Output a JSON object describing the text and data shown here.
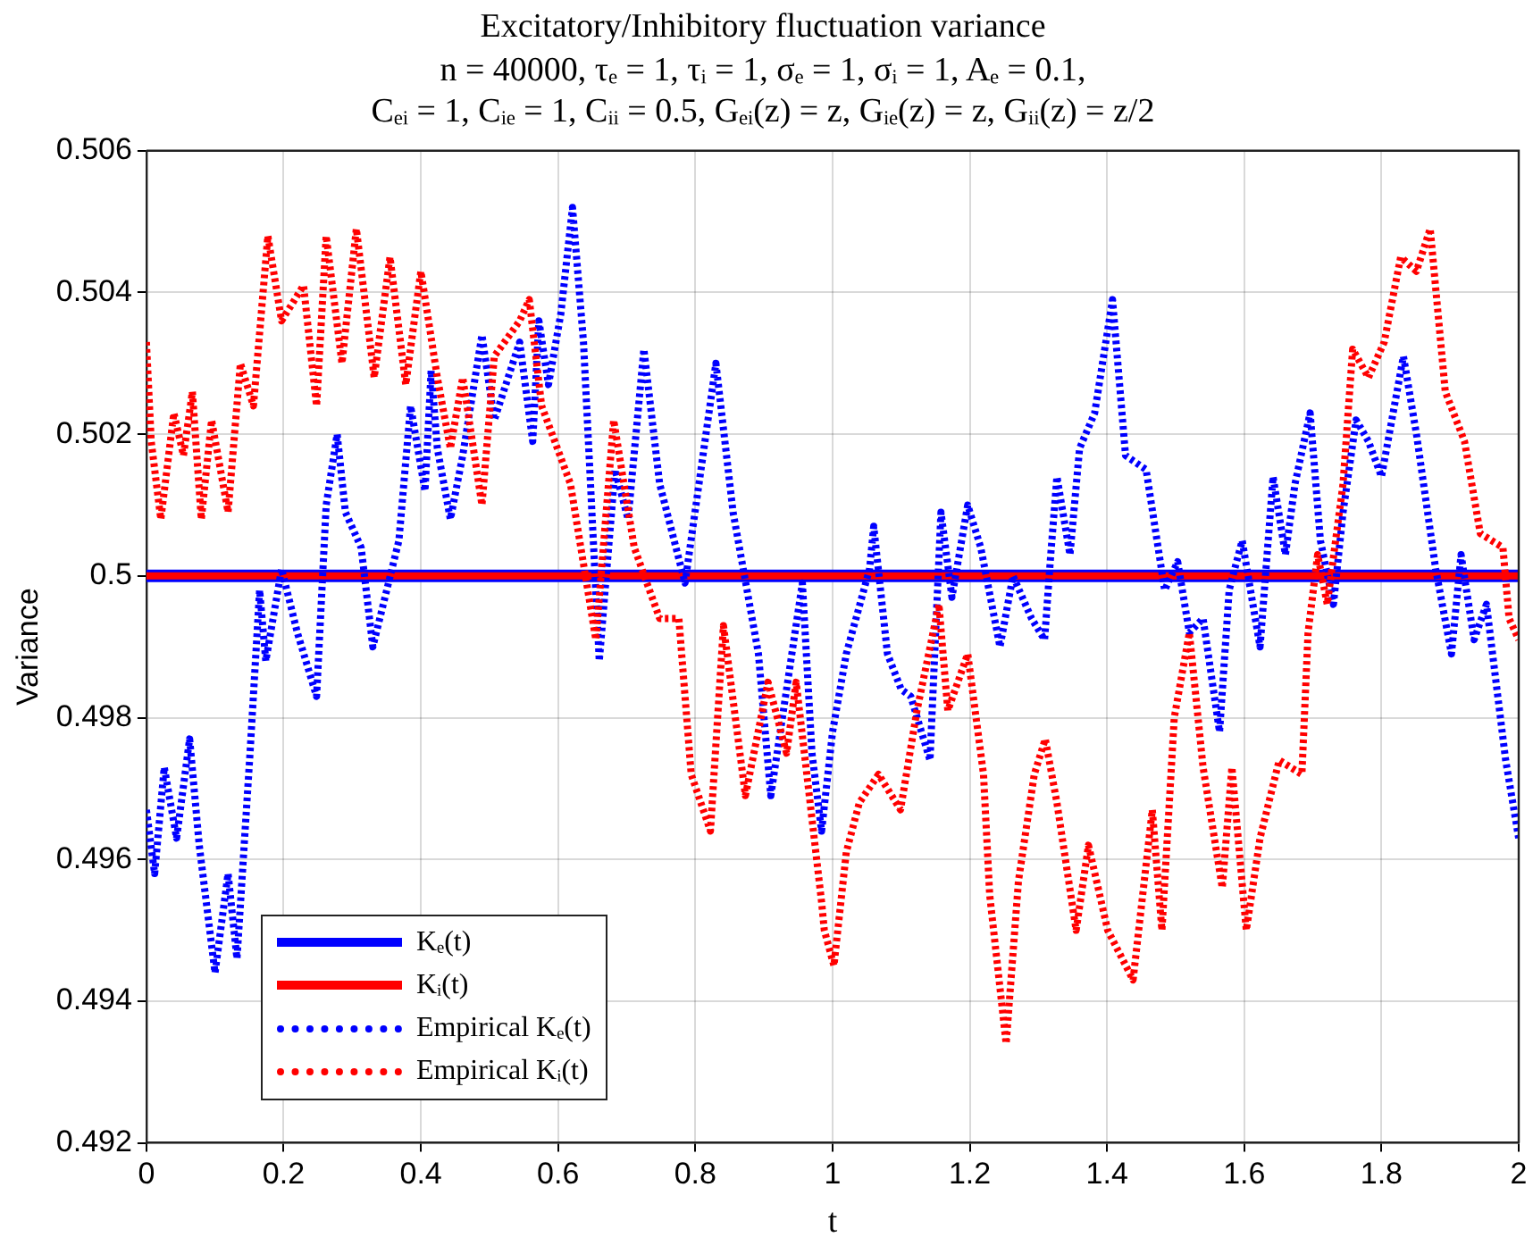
{
  "chart_data": {
    "type": "line",
    "title": "Excitatory/Inhibitory fluctuation variance",
    "subtitle": [
      "n = 40000, τₑ = 1, τᵢ = 1, σₑ = 1, σᵢ = 1, Aₑ = 0.1,",
      "Cₑᵢ = 1, Cᵢₑ = 1, Cᵢᵢ = 0.5, Gₑᵢ(z) = z, Gᵢₑ(z) = z, Gᵢᵢ(z) = z/2"
    ],
    "xlabel": "t",
    "ylabel": "Variance",
    "xlim": [
      0,
      2
    ],
    "xticks": [
      0,
      0.2,
      0.4,
      0.6,
      0.8,
      1,
      1.2,
      1.4,
      1.6,
      1.8,
      2
    ],
    "ylim": [
      0.492,
      0.506
    ],
    "yticks": [
      0.492,
      0.494,
      0.496,
      0.498,
      0.5,
      0.502,
      0.504,
      0.506
    ],
    "grid": true,
    "legend": "bottom left",
    "marker": "none",
    "series": [
      {
        "name": "Kₑ(t)",
        "color": "#0000ff",
        "line_style": "solid",
        "x": [
          0,
          2
        ],
        "values": [
          0.5,
          0.5
        ]
      },
      {
        "name": "Kᵢ(t)",
        "color": "#ff0000",
        "line_style": "solid",
        "x": [
          0,
          2
        ],
        "values": [
          0.5,
          0.5
        ]
      },
      {
        "name": "Empirical Kₑ(t)",
        "color": "#0000ff",
        "line_style": "dotted",
        "x": [
          0,
          0.012,
          0.026,
          0.044,
          0.063,
          0.077,
          0.1,
          0.119,
          0.132,
          0.151,
          0.165,
          0.174,
          0.197,
          0.22,
          0.248,
          0.262,
          0.278,
          0.29,
          0.313,
          0.33,
          0.368,
          0.385,
          0.406,
          0.415,
          0.424,
          0.443,
          0.461,
          0.489,
          0.507,
          0.544,
          0.563,
          0.572,
          0.586,
          0.604,
          0.621,
          0.637,
          0.66,
          0.683,
          0.702,
          0.725,
          0.748,
          0.785,
          0.83,
          0.855,
          0.892,
          0.91,
          0.956,
          0.97,
          0.984,
          1.0,
          1.02,
          1.054,
          1.06,
          1.08,
          1.1,
          1.114,
          1.142,
          1.158,
          1.174,
          1.197,
          1.216,
          1.244,
          1.263,
          1.29,
          1.309,
          1.318,
          1.327,
          1.346,
          1.36,
          1.382,
          1.408,
          1.427,
          1.457,
          1.484,
          1.503,
          1.52,
          1.54,
          1.564,
          1.578,
          1.597,
          1.623,
          1.642,
          1.66,
          1.674,
          1.696,
          1.711,
          1.73,
          1.744,
          1.763,
          1.781,
          1.8,
          1.832,
          1.851,
          1.879,
          1.902,
          1.916,
          1.935,
          1.953,
          1.967,
          1.981,
          2.0
        ],
        "values": [
          0.4967,
          0.4958,
          0.4973,
          0.4963,
          0.4977,
          0.4962,
          0.4944,
          0.4958,
          0.4946,
          0.4975,
          0.4998,
          0.4988,
          0.5001,
          0.4992,
          0.4983,
          0.501,
          0.502,
          0.5009,
          0.5004,
          0.499,
          0.5005,
          0.5024,
          0.5012,
          0.5029,
          0.5018,
          0.5008,
          0.5017,
          0.5034,
          0.5022,
          0.5033,
          0.5019,
          0.5036,
          0.5027,
          0.5037,
          0.5052,
          0.5033,
          0.4988,
          0.5015,
          0.5008,
          0.5032,
          0.5013,
          0.4999,
          0.503,
          0.5009,
          0.4989,
          0.4969,
          0.4999,
          0.4975,
          0.4964,
          0.4978,
          0.4989,
          0.5001,
          0.5007,
          0.4989,
          0.4984,
          0.4983,
          0.4974,
          0.5009,
          0.4997,
          0.501,
          0.5004,
          0.499,
          0.5,
          0.4994,
          0.4991,
          0.5003,
          0.5014,
          0.5003,
          0.5018,
          0.5023,
          0.5039,
          0.5017,
          0.5015,
          0.4998,
          0.5002,
          0.4992,
          0.4994,
          0.4978,
          0.4998,
          0.5005,
          0.499,
          0.5014,
          0.5003,
          0.5013,
          0.5023,
          0.5005,
          0.4996,
          0.5009,
          0.5022,
          0.5019,
          0.5014,
          0.5031,
          0.502,
          0.5001,
          0.4989,
          0.5003,
          0.4991,
          0.4996,
          0.4985,
          0.4974,
          0.4963
        ]
      },
      {
        "name": "Empirical Kᵢ(t)",
        "color": "#ff0000",
        "line_style": "dotted",
        "x": [
          0,
          0.007,
          0.021,
          0.04,
          0.054,
          0.067,
          0.08,
          0.095,
          0.119,
          0.137,
          0.156,
          0.177,
          0.197,
          0.229,
          0.248,
          0.262,
          0.285,
          0.306,
          0.332,
          0.355,
          0.378,
          0.4,
          0.424,
          0.443,
          0.461,
          0.489,
          0.507,
          0.544,
          0.558,
          0.576,
          0.618,
          0.655,
          0.681,
          0.711,
          0.748,
          0.776,
          0.794,
          0.822,
          0.841,
          0.873,
          0.906,
          0.933,
          0.947,
          0.984,
          0.988,
          1.002,
          1.02,
          1.039,
          1.067,
          1.099,
          1.123,
          1.155,
          1.168,
          1.197,
          1.22,
          1.229,
          1.253,
          1.271,
          1.294,
          1.31,
          1.327,
          1.355,
          1.373,
          1.401,
          1.438,
          1.466,
          1.48,
          1.498,
          1.52,
          1.54,
          1.568,
          1.582,
          1.603,
          1.623,
          1.651,
          1.684,
          1.693,
          1.707,
          1.721,
          1.744,
          1.758,
          1.781,
          1.804,
          1.828,
          1.851,
          1.871,
          1.893,
          1.921,
          1.944,
          1.977,
          1.986,
          2.0
        ],
        "values": [
          0.5033,
          0.5019,
          0.5008,
          0.5023,
          0.5017,
          0.5026,
          0.5008,
          0.5022,
          0.5009,
          0.503,
          0.5024,
          0.5048,
          0.5036,
          0.5041,
          0.5024,
          0.5048,
          0.503,
          0.5049,
          0.5028,
          0.5045,
          0.5027,
          0.5043,
          0.5028,
          0.5018,
          0.5028,
          0.501,
          0.5031,
          0.5036,
          0.5039,
          0.5024,
          0.5013,
          0.4991,
          0.5022,
          0.5004,
          0.4994,
          0.4994,
          0.4972,
          0.4964,
          0.4993,
          0.4969,
          0.4985,
          0.4975,
          0.4985,
          0.4954,
          0.495,
          0.4945,
          0.4961,
          0.4968,
          0.4972,
          0.4967,
          0.4981,
          0.4996,
          0.4981,
          0.4989,
          0.4972,
          0.4955,
          0.4934,
          0.4957,
          0.4972,
          0.4977,
          0.4968,
          0.495,
          0.4962,
          0.495,
          0.4943,
          0.4967,
          0.495,
          0.498,
          0.4992,
          0.4973,
          0.4956,
          0.4973,
          0.495,
          0.4963,
          0.4974,
          0.4972,
          0.4992,
          0.5003,
          0.4996,
          0.5013,
          0.5032,
          0.5028,
          0.5033,
          0.5045,
          0.5043,
          0.5049,
          0.5026,
          0.5019,
          0.5006,
          0.5004,
          0.4994,
          0.4991
        ]
      }
    ]
  }
}
